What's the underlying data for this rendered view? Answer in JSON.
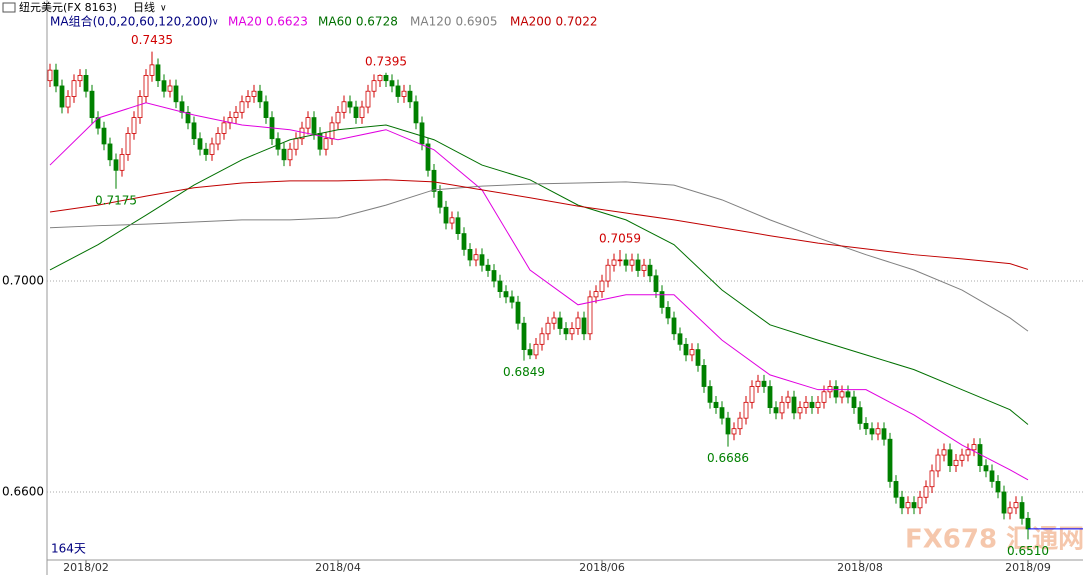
{
  "header": {
    "symbol": "纽元美元(FX 8163)",
    "period": "日线"
  },
  "chart_data": {
    "type": "candlestick",
    "legend_title": "MA组合(0,0,20,60,120,200)",
    "days_label": "164天",
    "watermark": "FX678 汇通网",
    "annotations": [
      "0.7435",
      "0.7175",
      "0.7395",
      "0.6849",
      "0.7059",
      "0.6686",
      "0.6510"
    ],
    "xlim": [
      0,
      163
    ],
    "xticks": [
      {
        "value": 6,
        "label": "2018/02"
      },
      {
        "value": 48,
        "label": "2018/04"
      },
      {
        "value": 92,
        "label": "2018/06"
      },
      {
        "value": 135,
        "label": "2018/08"
      },
      {
        "value": 163,
        "label": "2018/09"
      }
    ],
    "ylim": [
      0.6471,
      0.7533
    ],
    "yticks": [
      {
        "value": 0.7,
        "label": "0.7000"
      },
      {
        "value": 0.66,
        "label": "0.6600"
      }
    ],
    "grid": true,
    "up_color": "#d00000",
    "down_color": "#008000",
    "candles": [
      [
        0.738,
        0.7412,
        0.7368,
        0.74
      ],
      [
        0.74,
        0.7412,
        0.7358,
        0.737
      ],
      [
        0.737,
        0.7382,
        0.7318,
        0.733
      ],
      [
        0.733,
        0.7362,
        0.7318,
        0.735
      ],
      [
        0.735,
        0.7392,
        0.7338,
        0.738
      ],
      [
        0.738,
        0.7402,
        0.7368,
        0.739
      ],
      [
        0.739,
        0.7402,
        0.7348,
        0.736
      ],
      [
        0.736,
        0.7372,
        0.7298,
        0.731
      ],
      [
        0.731,
        0.7322,
        0.7278,
        0.729
      ],
      [
        0.729,
        0.7302,
        0.7248,
        0.726
      ],
      [
        0.726,
        0.7272,
        0.7218,
        0.723
      ],
      [
        0.723,
        0.7242,
        0.7175,
        0.721
      ],
      [
        0.721,
        0.7252,
        0.7198,
        0.724
      ],
      [
        0.724,
        0.7292,
        0.7228,
        0.728
      ],
      [
        0.728,
        0.7322,
        0.7268,
        0.731
      ],
      [
        0.731,
        0.7362,
        0.7298,
        0.735
      ],
      [
        0.735,
        0.7402,
        0.7338,
        0.739
      ],
      [
        0.739,
        0.7435,
        0.7378,
        0.741
      ],
      [
        0.741,
        0.7422,
        0.7368,
        0.738
      ],
      [
        0.738,
        0.7392,
        0.7348,
        0.736
      ],
      [
        0.736,
        0.7382,
        0.7348,
        0.737
      ],
      [
        0.737,
        0.7382,
        0.7328,
        0.734
      ],
      [
        0.734,
        0.7352,
        0.7308,
        0.732
      ],
      [
        0.732,
        0.7332,
        0.7288,
        0.73
      ],
      [
        0.73,
        0.7312,
        0.7258,
        0.727
      ],
      [
        0.727,
        0.7282,
        0.7238,
        0.725
      ],
      [
        0.725,
        0.7262,
        0.7228,
        0.724
      ],
      [
        0.724,
        0.7272,
        0.7228,
        0.726
      ],
      [
        0.726,
        0.7292,
        0.7248,
        0.728
      ],
      [
        0.728,
        0.7312,
        0.7268,
        0.73
      ],
      [
        0.73,
        0.7322,
        0.7288,
        0.731
      ],
      [
        0.731,
        0.7332,
        0.7298,
        0.732
      ],
      [
        0.732,
        0.7352,
        0.7308,
        0.734
      ],
      [
        0.734,
        0.7362,
        0.7328,
        0.735
      ],
      [
        0.735,
        0.7372,
        0.7338,
        0.736
      ],
      [
        0.736,
        0.7372,
        0.7328,
        0.734
      ],
      [
        0.734,
        0.7352,
        0.7298,
        0.731
      ],
      [
        0.731,
        0.7322,
        0.7258,
        0.727
      ],
      [
        0.727,
        0.7282,
        0.7238,
        0.725
      ],
      [
        0.725,
        0.7262,
        0.7218,
        0.723
      ],
      [
        0.723,
        0.7262,
        0.7218,
        0.725
      ],
      [
        0.725,
        0.7282,
        0.7238,
        0.727
      ],
      [
        0.727,
        0.7302,
        0.7258,
        0.729
      ],
      [
        0.729,
        0.7322,
        0.7278,
        0.731
      ],
      [
        0.731,
        0.7322,
        0.7268,
        0.728
      ],
      [
        0.728,
        0.7292,
        0.7238,
        0.725
      ],
      [
        0.725,
        0.7282,
        0.7238,
        0.727
      ],
      [
        0.727,
        0.7312,
        0.7258,
        0.73
      ],
      [
        0.73,
        0.7332,
        0.7288,
        0.732
      ],
      [
        0.732,
        0.7352,
        0.7308,
        0.734
      ],
      [
        0.734,
        0.7352,
        0.7318,
        0.733
      ],
      [
        0.733,
        0.7342,
        0.7298,
        0.731
      ],
      [
        0.731,
        0.7342,
        0.7298,
        0.733
      ],
      [
        0.733,
        0.7372,
        0.7318,
        0.736
      ],
      [
        0.736,
        0.7392,
        0.7348,
        0.738
      ],
      [
        0.738,
        0.7392,
        0.7368,
        0.739
      ],
      [
        0.739,
        0.7395,
        0.7368,
        0.738
      ],
      [
        0.738,
        0.7392,
        0.7358,
        0.737
      ],
      [
        0.737,
        0.7382,
        0.7338,
        0.735
      ],
      [
        0.735,
        0.7372,
        0.7338,
        0.736
      ],
      [
        0.736,
        0.7372,
        0.7328,
        0.734
      ],
      [
        0.734,
        0.7352,
        0.7288,
        0.73
      ],
      [
        0.73,
        0.7312,
        0.7248,
        0.726
      ],
      [
        0.726,
        0.7272,
        0.7198,
        0.721
      ],
      [
        0.721,
        0.7222,
        0.7158,
        0.717
      ],
      [
        0.717,
        0.7182,
        0.7128,
        0.714
      ],
      [
        0.714,
        0.7152,
        0.7098,
        0.711
      ],
      [
        0.711,
        0.7132,
        0.7098,
        0.712
      ],
      [
        0.712,
        0.7132,
        0.7078,
        0.709
      ],
      [
        0.709,
        0.7102,
        0.7048,
        0.706
      ],
      [
        0.706,
        0.7072,
        0.7028,
        0.704
      ],
      [
        0.704,
        0.7062,
        0.7028,
        0.705
      ],
      [
        0.705,
        0.7062,
        0.7018,
        0.703
      ],
      [
        0.703,
        0.7042,
        0.7008,
        0.702
      ],
      [
        0.702,
        0.7032,
        0.6988,
        0.7
      ],
      [
        0.7,
        0.7012,
        0.6968,
        0.698
      ],
      [
        0.698,
        0.6992,
        0.6958,
        0.697
      ],
      [
        0.697,
        0.6982,
        0.6948,
        0.696
      ],
      [
        0.696,
        0.6972,
        0.6908,
        0.692
      ],
      [
        0.692,
        0.6932,
        0.6849,
        0.687
      ],
      [
        0.687,
        0.6882,
        0.6852,
        0.686
      ],
      [
        0.686,
        0.6892,
        0.6852,
        0.688
      ],
      [
        0.688,
        0.6912,
        0.6868,
        0.69
      ],
      [
        0.69,
        0.6932,
        0.6888,
        0.692
      ],
      [
        0.692,
        0.6942,
        0.6908,
        0.693
      ],
      [
        0.693,
        0.6942,
        0.6898,
        0.691
      ],
      [
        0.691,
        0.6922,
        0.6888,
        0.69
      ],
      [
        0.69,
        0.6922,
        0.6888,
        0.691
      ],
      [
        0.691,
        0.6942,
        0.6898,
        0.693
      ],
      [
        0.693,
        0.6942,
        0.6888,
        0.69
      ],
      [
        0.69,
        0.6982,
        0.6888,
        0.697
      ],
      [
        0.697,
        0.6992,
        0.6958,
        0.698
      ],
      [
        0.698,
        0.7012,
        0.6968,
        0.7
      ],
      [
        0.7,
        0.7042,
        0.6988,
        0.703
      ],
      [
        0.703,
        0.7052,
        0.7018,
        0.704
      ],
      [
        0.704,
        0.7059,
        0.7028,
        0.704
      ],
      [
        0.704,
        0.7052,
        0.7018,
        0.703
      ],
      [
        0.703,
        0.7052,
        0.7018,
        0.704
      ],
      [
        0.704,
        0.7052,
        0.7008,
        0.702
      ],
      [
        0.702,
        0.7042,
        0.7008,
        0.703
      ],
      [
        0.703,
        0.7042,
        0.6998,
        0.701
      ],
      [
        0.701,
        0.7022,
        0.6968,
        0.698
      ],
      [
        0.698,
        0.6992,
        0.6938,
        0.695
      ],
      [
        0.695,
        0.6962,
        0.6918,
        0.693
      ],
      [
        0.693,
        0.6942,
        0.6888,
        0.69
      ],
      [
        0.69,
        0.6912,
        0.6868,
        0.688
      ],
      [
        0.688,
        0.6892,
        0.6848,
        0.686
      ],
      [
        0.686,
        0.6882,
        0.6848,
        0.687
      ],
      [
        0.687,
        0.6882,
        0.6828,
        0.684
      ],
      [
        0.684,
        0.6852,
        0.6788,
        0.68
      ],
      [
        0.68,
        0.6812,
        0.6758,
        0.677
      ],
      [
        0.677,
        0.6782,
        0.6748,
        0.676
      ],
      [
        0.676,
        0.6772,
        0.6728,
        0.674
      ],
      [
        0.674,
        0.6752,
        0.6686,
        0.671
      ],
      [
        0.671,
        0.6732,
        0.6698,
        0.672
      ],
      [
        0.672,
        0.6752,
        0.6708,
        0.674
      ],
      [
        0.674,
        0.6782,
        0.6728,
        0.677
      ],
      [
        0.677,
        0.6812,
        0.6758,
        0.68
      ],
      [
        0.68,
        0.6822,
        0.6788,
        0.681
      ],
      [
        0.681,
        0.6822,
        0.6788,
        0.68
      ],
      [
        0.68,
        0.6812,
        0.6748,
        0.676
      ],
      [
        0.676,
        0.6772,
        0.6738,
        0.675
      ],
      [
        0.675,
        0.6782,
        0.6738,
        0.677
      ],
      [
        0.677,
        0.6792,
        0.6758,
        0.678
      ],
      [
        0.678,
        0.6792,
        0.6738,
        0.675
      ],
      [
        0.675,
        0.6772,
        0.6738,
        0.676
      ],
      [
        0.676,
        0.6782,
        0.6748,
        0.677
      ],
      [
        0.677,
        0.6782,
        0.6748,
        0.676
      ],
      [
        0.676,
        0.6782,
        0.6748,
        0.677
      ],
      [
        0.677,
        0.6802,
        0.6758,
        0.679
      ],
      [
        0.679,
        0.6812,
        0.6778,
        0.68
      ],
      [
        0.68,
        0.6812,
        0.6768,
        0.678
      ],
      [
        0.678,
        0.6802,
        0.6768,
        0.679
      ],
      [
        0.679,
        0.6802,
        0.6768,
        0.678
      ],
      [
        0.678,
        0.6792,
        0.6748,
        0.676
      ],
      [
        0.676,
        0.6772,
        0.6718,
        0.673
      ],
      [
        0.673,
        0.6742,
        0.6708,
        0.672
      ],
      [
        0.672,
        0.6732,
        0.6698,
        0.671
      ],
      [
        0.671,
        0.6732,
        0.6698,
        0.672
      ],
      [
        0.672,
        0.6732,
        0.6688,
        0.67
      ],
      [
        0.67,
        0.6712,
        0.6608,
        0.662
      ],
      [
        0.662,
        0.6632,
        0.6578,
        0.659
      ],
      [
        0.659,
        0.6602,
        0.6558,
        0.657
      ],
      [
        0.657,
        0.6592,
        0.6558,
        0.658
      ],
      [
        0.658,
        0.6592,
        0.6558,
        0.657
      ],
      [
        0.657,
        0.6602,
        0.6558,
        0.659
      ],
      [
        0.659,
        0.6622,
        0.6578,
        0.661
      ],
      [
        0.661,
        0.6652,
        0.6598,
        0.664
      ],
      [
        0.664,
        0.6682,
        0.6628,
        0.667
      ],
      [
        0.667,
        0.6692,
        0.6658,
        0.668
      ],
      [
        0.668,
        0.6692,
        0.6638,
        0.665
      ],
      [
        0.665,
        0.6672,
        0.6638,
        0.666
      ],
      [
        0.666,
        0.6682,
        0.6648,
        0.667
      ],
      [
        0.667,
        0.6692,
        0.6658,
        0.668
      ],
      [
        0.668,
        0.6702,
        0.6668,
        0.669
      ],
      [
        0.669,
        0.6702,
        0.6638,
        0.665
      ],
      [
        0.665,
        0.6662,
        0.6628,
        0.664
      ],
      [
        0.664,
        0.6652,
        0.6608,
        0.662
      ],
      [
        0.662,
        0.6632,
        0.6588,
        0.66
      ],
      [
        0.66,
        0.6612,
        0.6548,
        0.656
      ],
      [
        0.656,
        0.6582,
        0.6548,
        0.657
      ],
      [
        0.657,
        0.6592,
        0.6558,
        0.658
      ],
      [
        0.658,
        0.6592,
        0.6538,
        0.655
      ],
      [
        0.655,
        0.6562,
        0.651,
        0.653
      ]
    ],
    "x": [
      0,
      8,
      16,
      24,
      32,
      40,
      48,
      56,
      64,
      72,
      80,
      88,
      96,
      104,
      112,
      120,
      128,
      136,
      144,
      152,
      160,
      163
    ],
    "series": [
      {
        "name": "MA20",
        "color": "#e000e0",
        "values": [
          0.722,
          0.7309,
          0.7338,
          0.7315,
          0.7296,
          0.7287,
          0.7268,
          0.7287,
          0.7249,
          0.7173,
          0.7021,
          0.6955,
          0.6974,
          0.6974,
          0.6888,
          0.6822,
          0.6794,
          0.6794,
          0.6746,
          0.6689,
          0.6642,
          0.6623
        ]
      },
      {
        "name": "MA60",
        "color": "#007000",
        "values": [
          0.7021,
          0.7069,
          0.7125,
          0.7182,
          0.723,
          0.7268,
          0.7287,
          0.7296,
          0.7268,
          0.722,
          0.7192,
          0.7144,
          0.7116,
          0.7069,
          0.6983,
          0.6917,
          0.6888,
          0.686,
          0.6832,
          0.6794,
          0.6756,
          0.6728
        ]
      },
      {
        "name": "MA120",
        "color": "#808080",
        "values": [
          0.7101,
          0.7105,
          0.7108,
          0.7112,
          0.7116,
          0.7116,
          0.712,
          0.7144,
          0.7173,
          0.718,
          0.7184,
          0.7186,
          0.7188,
          0.7182,
          0.7154,
          0.7116,
          0.7082,
          0.705,
          0.7021,
          0.6983,
          0.693,
          0.6905
        ]
      },
      {
        "name": "MA200",
        "color": "#c00000",
        "values": [
          0.7131,
          0.7144,
          0.7161,
          0.7177,
          0.7186,
          0.719,
          0.719,
          0.7192,
          0.7188,
          0.7173,
          0.7158,
          0.7142,
          0.7129,
          0.7116,
          0.7101,
          0.7086,
          0.7072,
          0.7061,
          0.705,
          0.7042,
          0.7033,
          0.7022
        ]
      }
    ]
  }
}
